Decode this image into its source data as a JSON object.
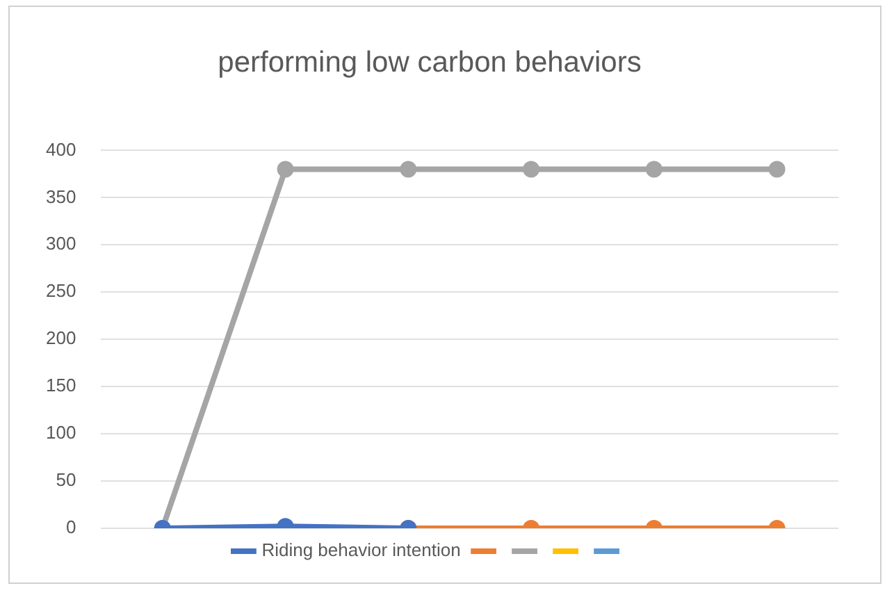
{
  "chart_data": {
    "type": "line",
    "title": "performing low carbon behaviors",
    "categories": [
      null,
      null,
      null,
      null,
      null,
      null
    ],
    "series": [
      {
        "name": "Riding behavior intention",
        "color": "#4472c4",
        "values": [
          0,
          2,
          0,
          null,
          null,
          null
        ]
      },
      {
        "color": "#ed7d31",
        "values": [
          null,
          null,
          0,
          0,
          0,
          0
        ]
      },
      {
        "color": "#a5a5a5",
        "values": [
          0,
          380,
          380,
          380,
          380,
          380
        ]
      },
      {
        "color": "#ffc000",
        "values": [
          null,
          null,
          null,
          null,
          null,
          null
        ]
      },
      {
        "color": "#5b9bd5",
        "values": [
          null,
          null,
          null,
          null,
          null,
          null
        ]
      }
    ],
    "ylim": [
      0,
      400
    ],
    "yticks": [
      0,
      50,
      100,
      150,
      200,
      250,
      300,
      350,
      400
    ],
    "grid": "y",
    "legend": "bottom",
    "marker": "circle",
    "line_style": "solid",
    "tick_labels": "y"
  }
}
